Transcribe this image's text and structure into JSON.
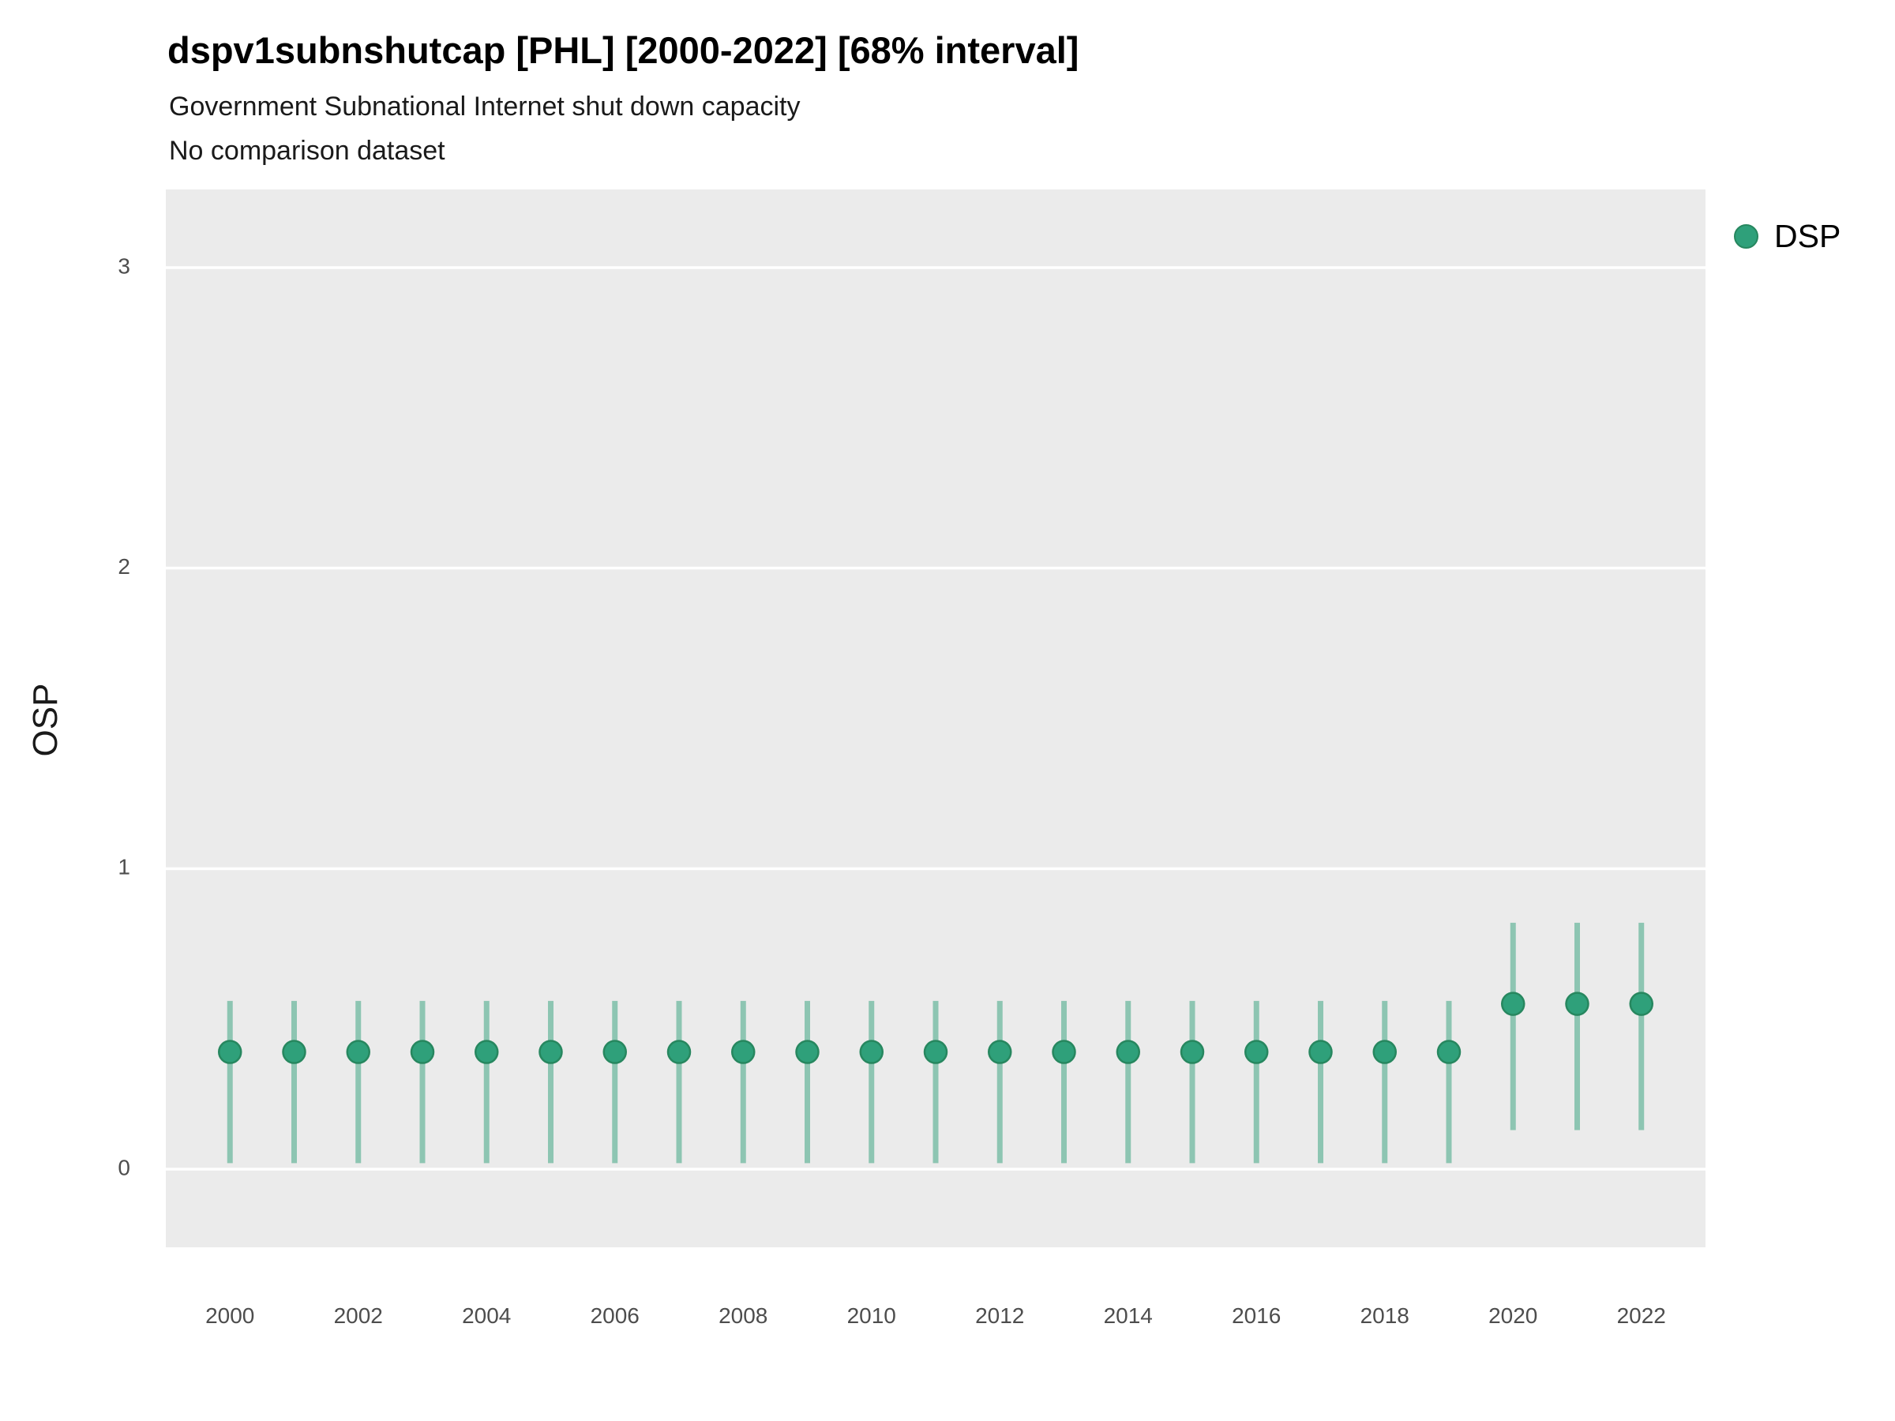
{
  "header": {
    "title": "dspv1subnshutcap [PHL] [2000-2022] [68% interval]",
    "subtitle": "Government Subnational Internet shut down capacity",
    "subtitle2": "No comparison dataset"
  },
  "legend": {
    "items": [
      {
        "label": "DSP",
        "color": "#2fa07a"
      }
    ]
  },
  "axes": {
    "y_label": "OSP",
    "y_ticks": [
      0,
      1,
      2,
      3
    ],
    "x_ticks": [
      2000,
      2002,
      2004,
      2006,
      2008,
      2010,
      2012,
      2014,
      2016,
      2018,
      2020,
      2022
    ]
  },
  "colors": {
    "panel_background": "#ebebeb",
    "gridline": "#ffffff",
    "point_fill": "#2fa07a",
    "point_stroke": "#27875f",
    "interval_stroke": "rgba(47,160,122,0.5)",
    "tick_label": "#4d4d4d"
  },
  "chart_data": {
    "type": "scatter",
    "subtype": "pointrange",
    "title": "dspv1subnshutcap [PHL] [2000-2022] [68% interval]",
    "subtitle": "Government Subnational Internet shut down capacity",
    "caption": "No comparison dataset",
    "xlabel": "",
    "ylabel": "OSP",
    "xlim": [
      1999,
      2023
    ],
    "ylim": [
      -0.26,
      3.26
    ],
    "grid": "major-horizontal-white-on-gray",
    "legend_position": "right-top",
    "interval_label": "68% interval",
    "x": [
      2000,
      2001,
      2002,
      2003,
      2004,
      2005,
      2006,
      2007,
      2008,
      2009,
      2010,
      2011,
      2012,
      2013,
      2014,
      2015,
      2016,
      2017,
      2018,
      2019,
      2020,
      2021,
      2022
    ],
    "series": [
      {
        "name": "DSP",
        "estimates": [
          0.39,
          0.39,
          0.39,
          0.39,
          0.39,
          0.39,
          0.39,
          0.39,
          0.39,
          0.39,
          0.39,
          0.39,
          0.39,
          0.39,
          0.39,
          0.39,
          0.39,
          0.39,
          0.39,
          0.39,
          0.55,
          0.55,
          0.55
        ],
        "lower": [
          0.02,
          0.02,
          0.02,
          0.02,
          0.02,
          0.02,
          0.02,
          0.02,
          0.02,
          0.02,
          0.02,
          0.02,
          0.02,
          0.02,
          0.02,
          0.02,
          0.02,
          0.02,
          0.02,
          0.02,
          0.13,
          0.13,
          0.13
        ],
        "upper": [
          0.56,
          0.56,
          0.56,
          0.56,
          0.56,
          0.56,
          0.56,
          0.56,
          0.56,
          0.56,
          0.56,
          0.56,
          0.56,
          0.56,
          0.56,
          0.56,
          0.56,
          0.56,
          0.56,
          0.56,
          0.82,
          0.82,
          0.82
        ]
      }
    ]
  }
}
